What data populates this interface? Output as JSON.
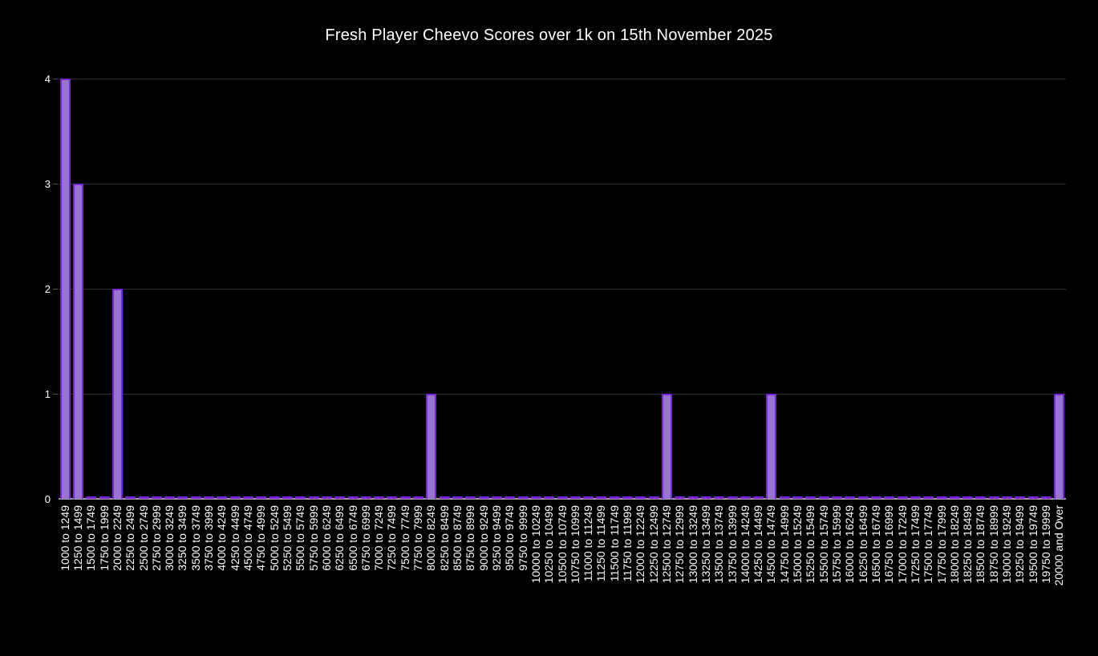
{
  "chart_data": {
    "type": "bar",
    "title": "Fresh Player Cheevo Scores over 1k on 15th November 2025",
    "xlabel": "",
    "ylabel": "",
    "ylim": [
      0,
      4
    ],
    "yticks": [
      0,
      1,
      2,
      3,
      4
    ],
    "grid": true,
    "legend": "none",
    "categories": [
      "1000 to 1249",
      "1250 to 1499",
      "1500 to 1749",
      "1750 to 1999",
      "2000 to 2249",
      "2250 to 2499",
      "2500 to 2749",
      "2750 to 2999",
      "3000 to 3249",
      "3250 to 3499",
      "3500 to 3749",
      "3750 to 3999",
      "4000 to 4249",
      "4250 to 4499",
      "4500 to 4749",
      "4750 to 4999",
      "5000 to 5249",
      "5250 to 5499",
      "5500 to 5749",
      "5750 to 5999",
      "6000 to 6249",
      "6250 to 6499",
      "6500 to 6749",
      "6750 to 6999",
      "7000 to 7249",
      "7250 to 7499",
      "7500 to 7749",
      "7750 to 7999",
      "8000 to 8249",
      "8250 to 8499",
      "8500 to 8749",
      "8750 to 8999",
      "9000 to 9249",
      "9250 to 9499",
      "9500 to 9749",
      "9750 to 9999",
      "10000 to 10249",
      "10250 to 10499",
      "10500 to 10749",
      "10750 to 10999",
      "11000 to 11249",
      "11250 to 11499",
      "11500 to 11749",
      "11750 to 11999",
      "12000 to 12249",
      "12250 to 12499",
      "12500 to 12749",
      "12750 to 12999",
      "13000 to 13249",
      "13250 to 13499",
      "13500 to 13749",
      "13750 to 13999",
      "14000 to 14249",
      "14250 to 14499",
      "14500 to 14749",
      "14750 to 14999",
      "15000 to 15249",
      "15250 to 15499",
      "15500 to 15749",
      "15750 to 15999",
      "16000 to 16249",
      "16250 to 16499",
      "16500 to 16749",
      "16750 to 16999",
      "17000 to 17249",
      "17250 to 17499",
      "17500 to 17749",
      "17750 to 17999",
      "18000 to 18249",
      "18250 to 18499",
      "18500 to 18749",
      "18750 to 18999",
      "19000 to 19249",
      "19250 to 19499",
      "19500 to 19749",
      "19750 to 19999",
      "20000 and Over"
    ],
    "values": [
      4,
      3,
      0,
      0,
      2,
      0,
      0,
      0,
      0,
      0,
      0,
      0,
      0,
      0,
      0,
      0,
      0,
      0,
      0,
      0,
      0,
      0,
      0,
      0,
      0,
      0,
      0,
      0,
      1,
      0,
      0,
      0,
      0,
      0,
      0,
      0,
      0,
      0,
      0,
      0,
      0,
      0,
      0,
      0,
      0,
      0,
      1,
      0,
      0,
      0,
      0,
      0,
      0,
      0,
      1,
      0,
      0,
      0,
      0,
      0,
      0,
      0,
      0,
      0,
      0,
      0,
      0,
      0,
      0,
      0,
      0,
      0,
      0,
      0,
      0,
      0,
      1
    ]
  },
  "colors": {
    "background": "#000000",
    "bar_fill": "#9575cd",
    "bar_stroke": "#7b22dd",
    "gridline": "#2e2e2e",
    "axis_line": "#9e9e9e",
    "text": "#ffffff"
  }
}
